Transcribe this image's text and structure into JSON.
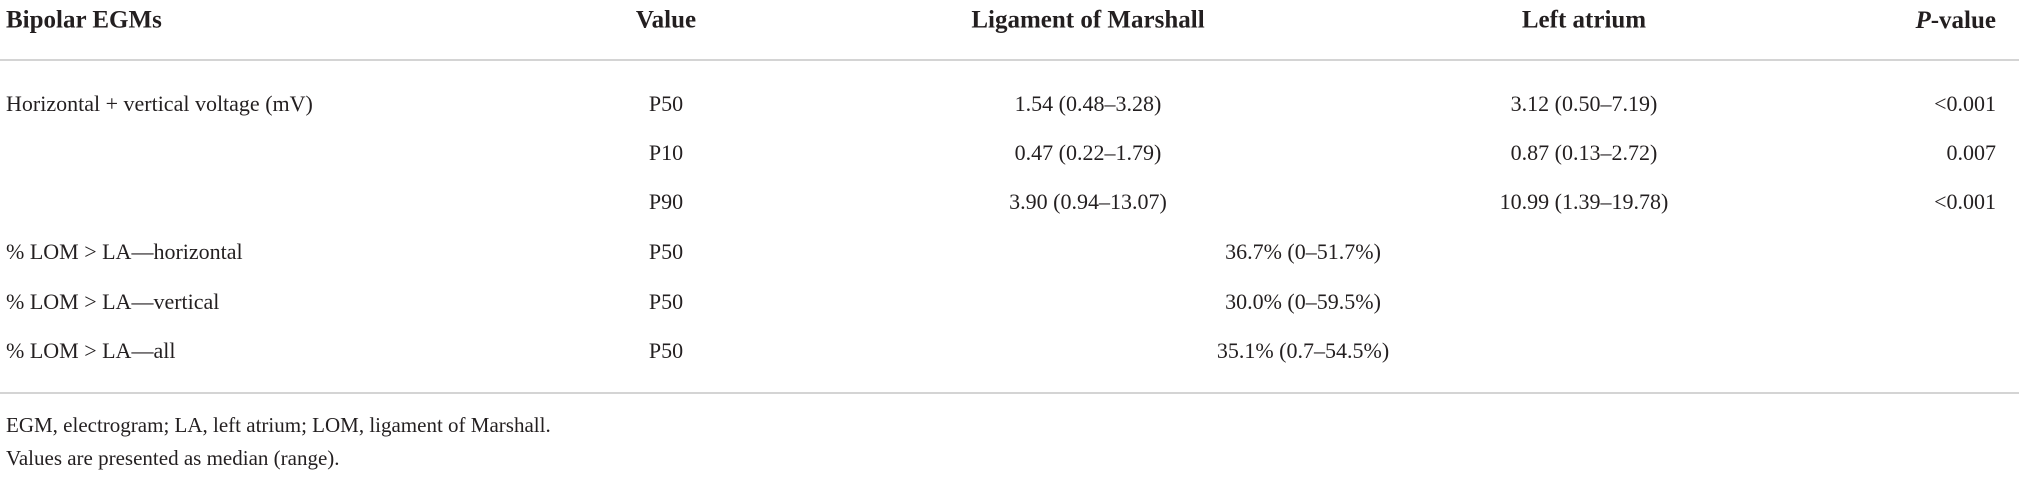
{
  "table": {
    "columns": [
      "Bipolar EGMs",
      "Value",
      "Ligament of Marshall",
      "Left atrium",
      {
        "italic": "P",
        "rest": "-value"
      }
    ],
    "rows": [
      {
        "label": "Horizontal + vertical voltage (mV)",
        "value": "P50",
        "lom": "1.54 (0.48–3.28)",
        "la": "3.12 (0.50–7.19)",
        "p": "<0.001"
      },
      {
        "value": "P10",
        "lom": "0.47 (0.22–1.79)",
        "la": "0.87 (0.13–2.72)",
        "p": "0.007"
      },
      {
        "value": "P90",
        "lom": "3.90 (0.94–13.07)",
        "la": "10.99 (1.39–19.78)",
        "p": "<0.001"
      },
      {
        "label": "% LOM > LA—horizontal",
        "value": "P50",
        "combined": "36.7% (0–51.7%)"
      },
      {
        "label": "% LOM > LA—vertical",
        "value": "P50",
        "combined": "30.0% (0–59.5%)"
      },
      {
        "label": "% LOM > LA—all",
        "value": "P50",
        "combined": "35.1% (0.7–54.5%)"
      }
    ]
  },
  "footnotes": [
    "EGM, electrogram; LA, left atrium; LOM, ligament of Marshall.",
    "Values are presented as median (range)."
  ]
}
